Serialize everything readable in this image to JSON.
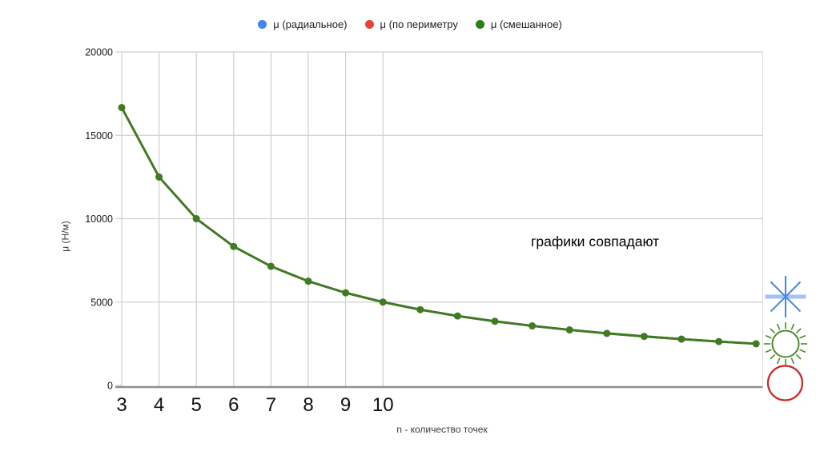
{
  "chart": {
    "legend": {
      "items": [
        {
          "key": "radial",
          "label": "μ (радиальное)",
          "color": "#4285f4"
        },
        {
          "key": "perimeter",
          "label": "μ (по периметру",
          "color": "#ea4335"
        },
        {
          "key": "mixed",
          "label": "μ (смешанное)",
          "color": "#2e7d1d"
        }
      ]
    }
  },
  "annotation": {
    "text": "графики совпадают"
  },
  "chart_data": {
    "type": "line",
    "x": [
      3,
      4,
      5,
      6,
      7,
      8,
      9,
      10,
      11,
      12,
      13,
      14,
      15,
      16,
      17,
      18,
      19,
      20
    ],
    "series": [
      {
        "name": "μ (радиальное)",
        "color": "#4285f4",
        "values": [
          16666.67,
          12500,
          10000,
          8333.33,
          7142.86,
          6250,
          5555.56,
          5000,
          4545.45,
          4166.67,
          3846.15,
          3571.43,
          3333.33,
          3125,
          2941.18,
          2777.78,
          2631.58,
          2500
        ]
      },
      {
        "name": "μ (по периметру",
        "color": "#ea4335",
        "values": [
          16666.67,
          12500,
          10000,
          8333.33,
          7142.86,
          6250,
          5555.56,
          5000,
          4545.45,
          4166.67,
          3846.15,
          3571.43,
          3333.33,
          3125,
          2941.18,
          2777.78,
          2631.58,
          2500
        ]
      },
      {
        "name": "μ (смешанное)",
        "color": "#3b7d20",
        "values": [
          16666.67,
          12500,
          10000,
          8333.33,
          7142.86,
          6250,
          5555.56,
          5000,
          4545.45,
          4166.67,
          3846.15,
          3571.43,
          3333.33,
          3125,
          2941.18,
          2777.78,
          2631.58,
          2500
        ]
      }
    ],
    "note": "all three series coincide exactly, so only the green curve drawn on top is visible ('графики совпадают')",
    "title": "",
    "xlabel": "n - количество точек",
    "ylabel": "μ (Н/м)",
    "xlim": [
      3,
      20
    ],
    "ylim": [
      0,
      20000
    ],
    "y_ticks": [
      0,
      5000,
      10000,
      15000,
      20000
    ],
    "x_tick_labels": [
      "3",
      "4",
      "5",
      "6",
      "7",
      "8",
      "9",
      "10"
    ],
    "grid": true,
    "legend_position": "top",
    "marker": "circle"
  },
  "icons": {
    "radial_asterisk": {
      "color": "#4a86e8",
      "bar_color": "#a4c2f4"
    },
    "mixed_sun": {
      "color": "#4c8b2b"
    },
    "perimeter_circle": {
      "color": "#cf2724"
    }
  }
}
